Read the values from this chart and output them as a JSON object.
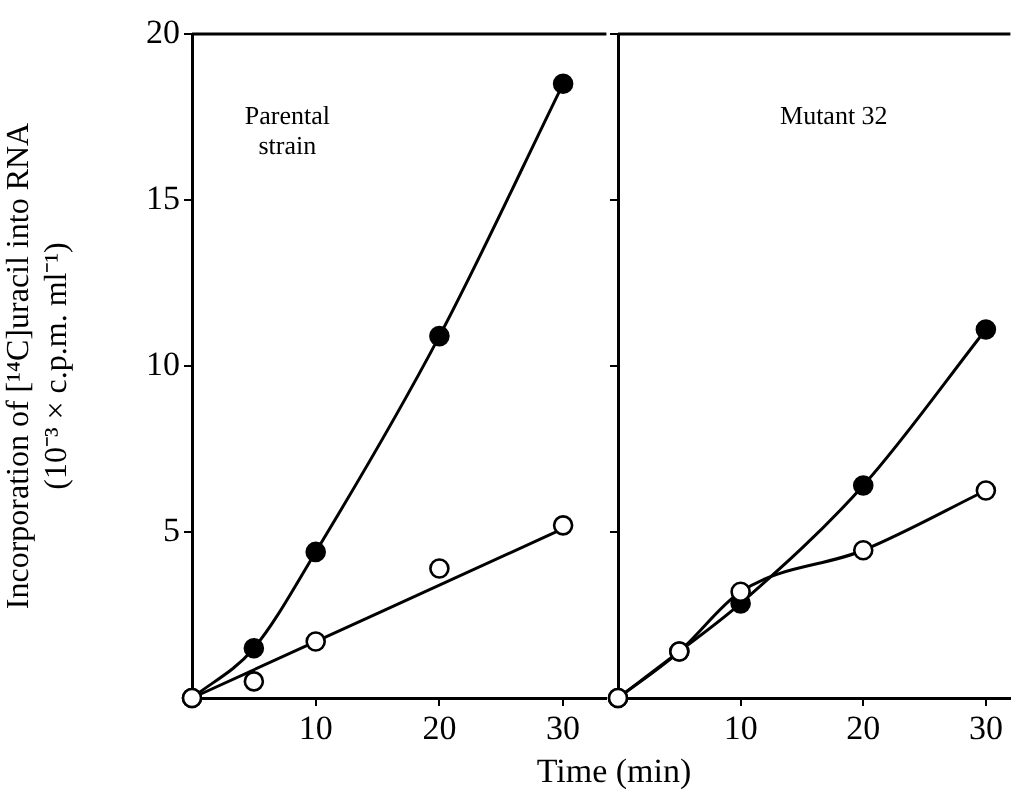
{
  "chart_data": [
    {
      "type": "line",
      "title": "Parental strain",
      "xlabel": "Time (min)",
      "ylabel": "Incorporation of [¹⁴C]uracil into RNA\n(10⁻³ × c.p.m. ml⁻¹)",
      "x": [
        0,
        5,
        10,
        20,
        30
      ],
      "xlim": [
        0,
        33.5
      ],
      "xticks": [
        10,
        20,
        30
      ],
      "ylim": [
        0,
        20
      ],
      "yticks": [
        5,
        10,
        15,
        20
      ],
      "grid": false,
      "legend": false,
      "marker": "circle",
      "line_style": "solid",
      "series": [
        {
          "type": "line",
          "color": "#000000",
          "values": [
            0,
            1.5,
            4.4,
            10.9,
            18.5
          ]
        },
        {
          "type": "scatter",
          "color": "#000000",
          "values": [
            0,
            0.5,
            1.7,
            3.9,
            5.2
          ]
        },
        {
          "type": "line",
          "color": "#000000",
          "marker": "none",
          "x": [
            0,
            30
          ],
          "values": [
            0,
            5.1
          ]
        }
      ]
    },
    {
      "type": "line",
      "title": "Mutant 32",
      "x": [
        0,
        5,
        10,
        20,
        30
      ],
      "xlim": [
        0,
        32
      ],
      "xticks": [
        10,
        20,
        30
      ],
      "ylim": [
        0,
        20
      ],
      "yticks": [
        5,
        10,
        15,
        20
      ],
      "tick_labels": "x",
      "grid": false,
      "legend": false,
      "marker": "circle",
      "line_style": "solid",
      "series": [
        {
          "type": "line",
          "color": "#000000",
          "values": [
            0,
            1.4,
            2.85,
            6.4,
            11.1
          ]
        },
        {
          "type": "line",
          "color": "#000000",
          "values": [
            0,
            1.4,
            3.2,
            4.45,
            6.25
          ]
        }
      ]
    }
  ]
}
